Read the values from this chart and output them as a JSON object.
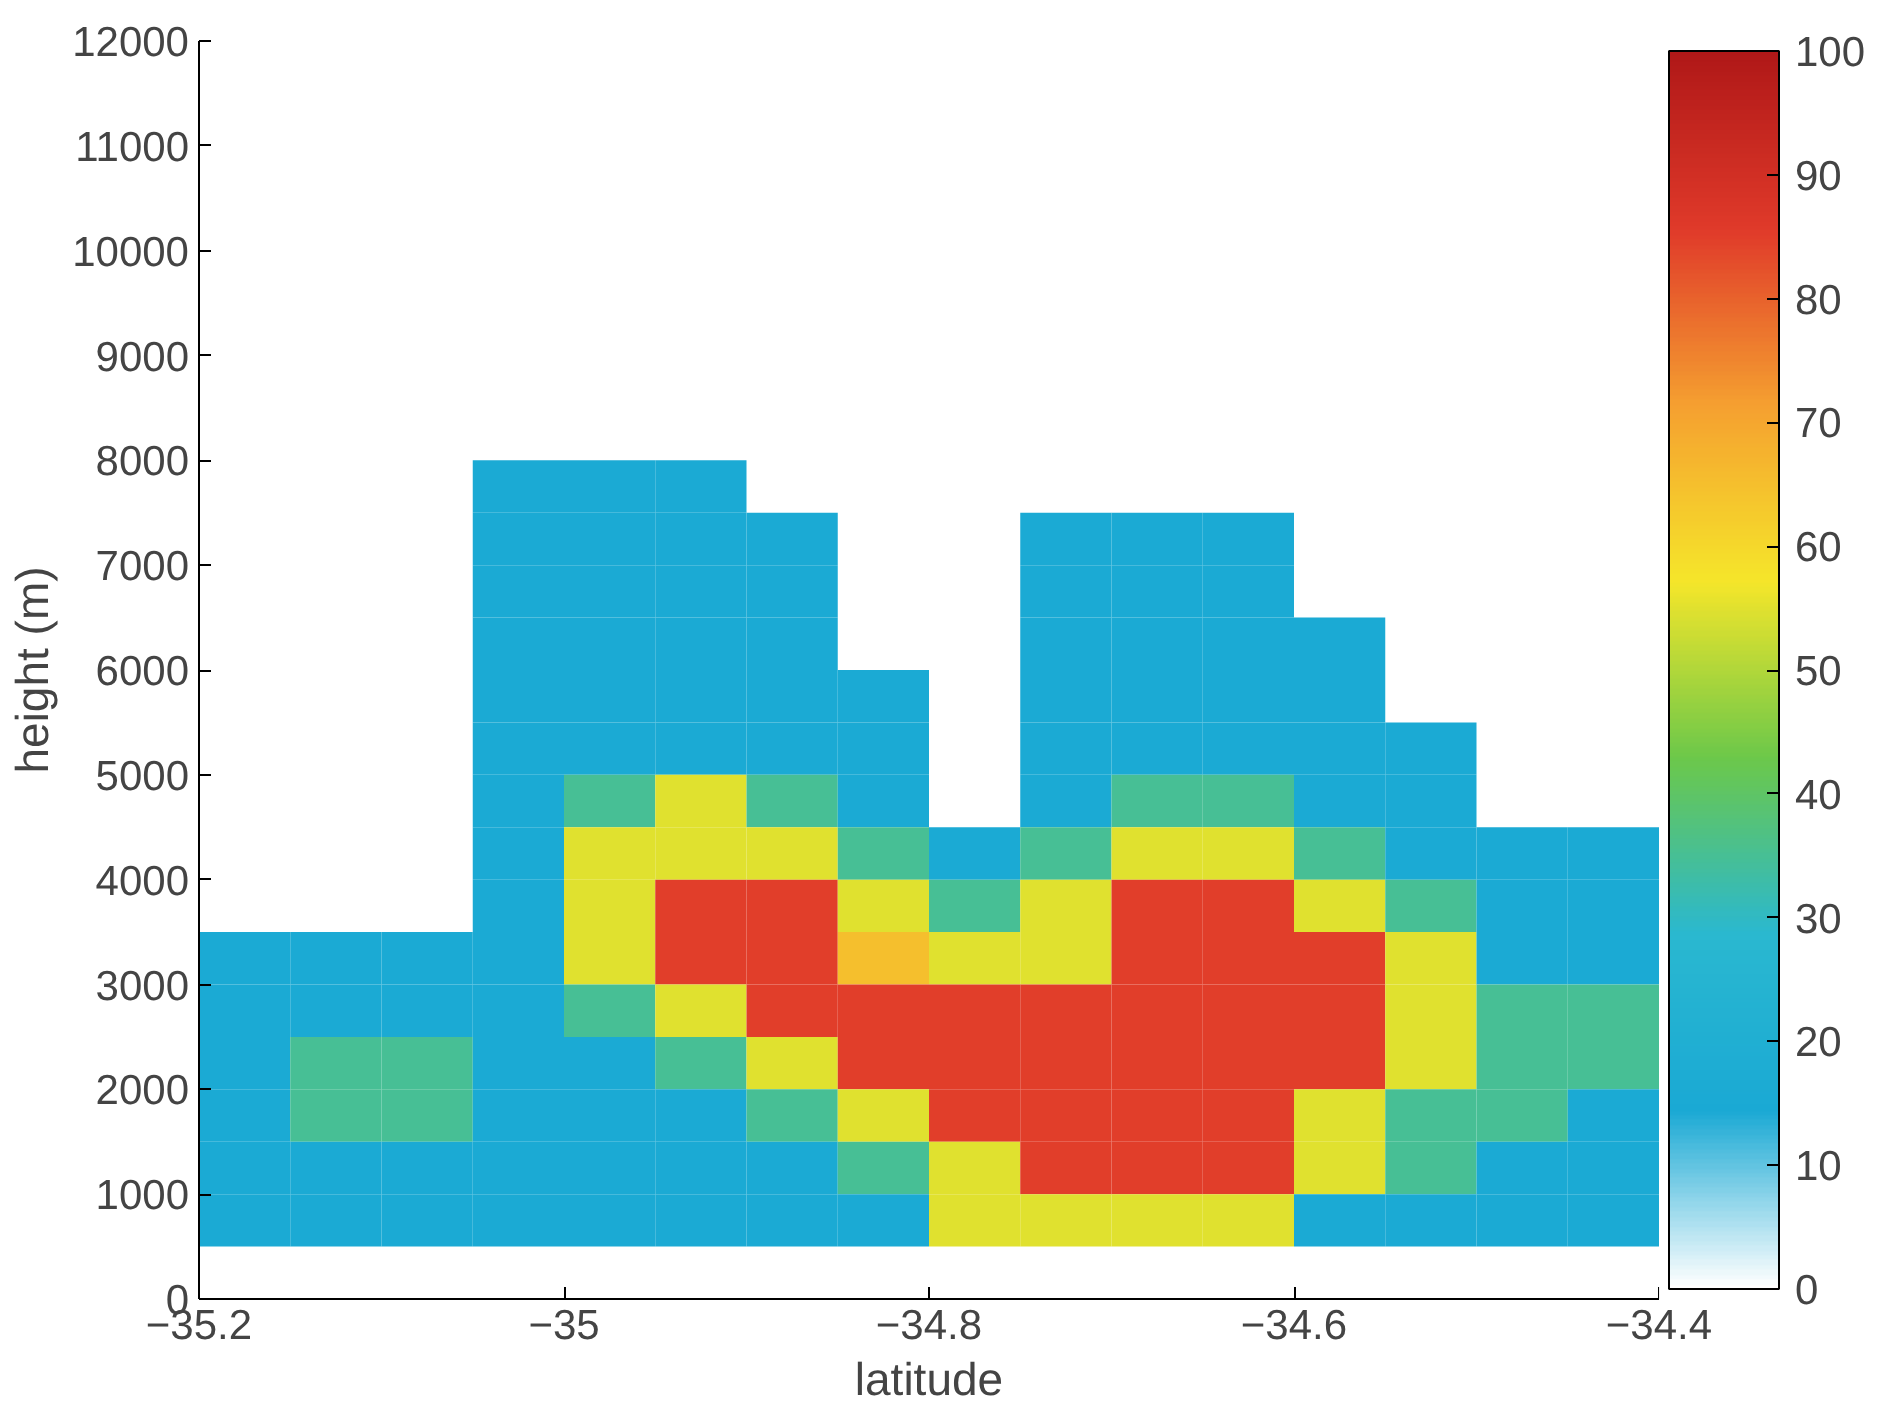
{
  "chart_data": {
    "type": "heatmap",
    "xlabel": "latitude",
    "ylabel": "height (m)",
    "x": [
      -35.175,
      -35.125,
      -35.075,
      -35.025,
      -34.975,
      -34.925,
      -34.875,
      -34.825,
      -34.775,
      -34.725,
      -34.675,
      -34.625,
      -34.575,
      -34.525,
      -34.475,
      -34.425
    ],
    "y": [
      7750,
      7250,
      6750,
      6250,
      5750,
      5250,
      4750,
      4250,
      3750,
      3250,
      2750,
      2250,
      1750,
      1250,
      750
    ],
    "xlim": [
      -35.2,
      -34.4
    ],
    "xticks": [
      -35.2,
      -35,
      -34.8,
      -34.6,
      -34.4
    ],
    "ylim": [
      0,
      12000
    ],
    "yticks": [
      0,
      1000,
      2000,
      3000,
      4000,
      5000,
      6000,
      7000,
      8000,
      9000,
      10000,
      11000,
      12000
    ],
    "clim": [
      0,
      100
    ],
    "cticks": [
      0,
      10,
      20,
      30,
      40,
      50,
      60,
      70,
      80,
      90,
      100
    ],
    "colors": [
      "#ffffff",
      "#1aa9d4",
      "#2ab8d0",
      "#6cc84a",
      "#f5e62a",
      "#f5a030",
      "#e03a2a",
      "#b01818"
    ],
    "cells": [
      [
        null,
        null,
        null,
        15,
        15,
        15,
        null,
        null,
        null,
        null,
        null,
        null,
        null,
        null,
        null,
        null
      ],
      [
        null,
        null,
        null,
        15,
        15,
        15,
        15,
        null,
        null,
        15,
        15,
        15,
        null,
        null,
        null,
        null
      ],
      [
        null,
        null,
        null,
        15,
        15,
        15,
        15,
        null,
        null,
        15,
        15,
        15,
        null,
        null,
        null,
        null
      ],
      [
        null,
        null,
        null,
        15,
        15,
        15,
        15,
        null,
        null,
        15,
        15,
        15,
        15,
        null,
        null,
        null
      ],
      [
        null,
        null,
        null,
        15,
        15,
        15,
        15,
        15,
        null,
        15,
        15,
        15,
        15,
        null,
        null,
        null
      ],
      [
        null,
        null,
        null,
        15,
        15,
        15,
        15,
        15,
        null,
        15,
        15,
        15,
        15,
        15,
        null,
        null
      ],
      [
        null,
        null,
        null,
        15,
        35,
        55,
        35,
        15,
        null,
        15,
        35,
        35,
        15,
        15,
        null,
        null
      ],
      [
        null,
        null,
        null,
        15,
        55,
        55,
        55,
        35,
        15,
        35,
        55,
        55,
        35,
        15,
        15,
        15
      ],
      [
        null,
        null,
        null,
        15,
        55,
        85,
        85,
        55,
        35,
        55,
        85,
        85,
        55,
        35,
        15,
        15
      ],
      [
        15,
        15,
        15,
        15,
        55,
        85,
        85,
        65,
        55,
        55,
        85,
        85,
        85,
        55,
        15,
        15
      ],
      [
        15,
        15,
        15,
        15,
        35,
        55,
        85,
        85,
        85,
        85,
        85,
        85,
        85,
        55,
        35,
        35
      ],
      [
        15,
        35,
        35,
        15,
        15,
        35,
        55,
        85,
        85,
        85,
        85,
        85,
        85,
        55,
        35,
        35
      ],
      [
        15,
        35,
        35,
        15,
        15,
        15,
        35,
        55,
        85,
        85,
        85,
        85,
        55,
        35,
        35,
        15
      ],
      [
        15,
        15,
        15,
        15,
        15,
        15,
        15,
        35,
        55,
        85,
        85,
        85,
        55,
        35,
        15,
        15
      ],
      [
        15,
        15,
        15,
        15,
        15,
        15,
        15,
        15,
        55,
        55,
        55,
        55,
        15,
        15,
        15,
        15
      ]
    ]
  }
}
